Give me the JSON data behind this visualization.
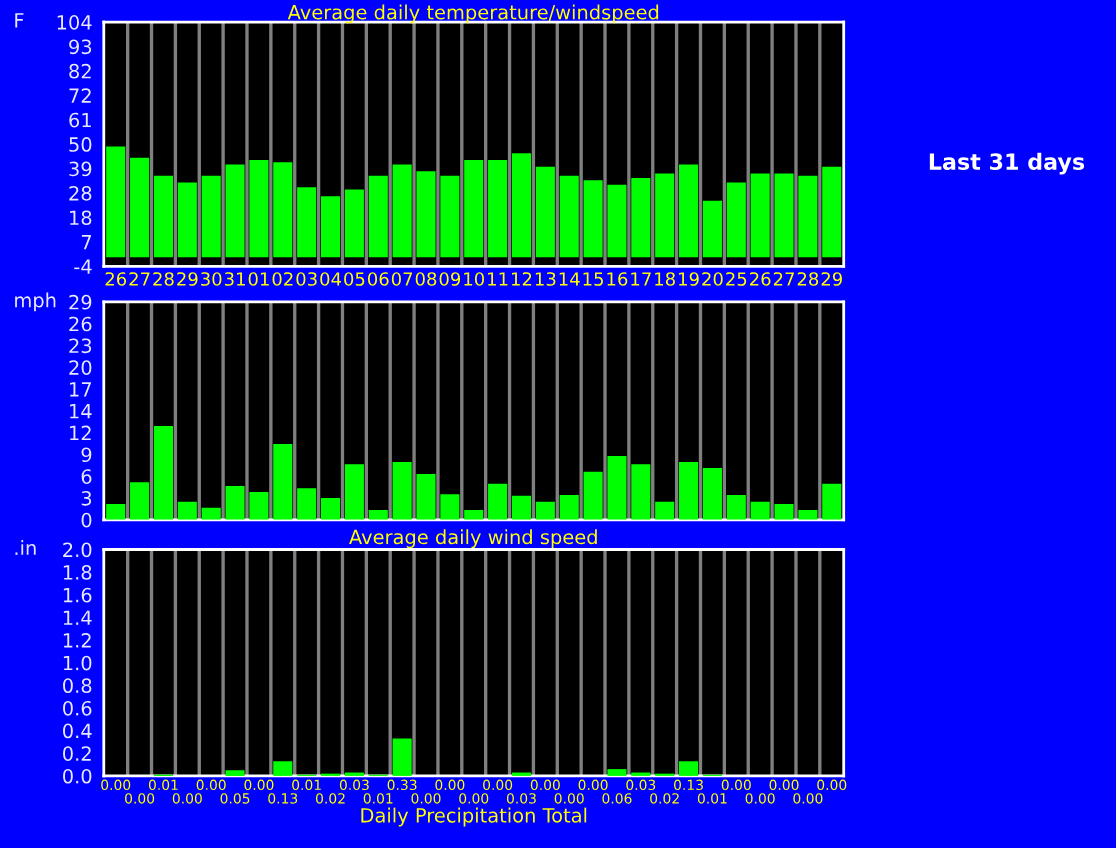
{
  "chart_data": [
    {
      "type": "bar",
      "title": "Average daily temperature/windspeed",
      "ylabel": "F",
      "annotations": [
        "Last 31 days"
      ],
      "categories": [
        "26",
        "27",
        "28",
        "29",
        "30",
        "31",
        "01",
        "02",
        "03",
        "04",
        "05",
        "06",
        "07",
        "08",
        "09",
        "10",
        "11",
        "12",
        "13",
        "14",
        "15",
        "16",
        "17",
        "18",
        "19",
        "20",
        "25",
        "26",
        "27",
        "28",
        "29"
      ],
      "values": [
        49,
        44,
        36,
        33,
        36,
        41,
        43,
        42,
        31,
        27,
        30,
        36,
        41,
        38,
        36,
        43,
        43,
        46,
        40,
        36,
        34,
        32,
        35,
        37,
        41,
        25,
        33,
        37,
        37,
        36,
        40
      ],
      "color": "#00ff00",
      "ylim": [
        -4,
        104
      ],
      "yticks": [
        -4,
        {
          "value": 6.8,
          "label": "7"
        },
        {
          "value": 17.6,
          "label": "18"
        },
        {
          "value": 28.4,
          "label": "28"
        },
        {
          "value": 39.2,
          "label": "39"
        },
        50,
        {
          "value": 60.8,
          "label": "61"
        },
        {
          "value": 71.6,
          "label": "72"
        },
        {
          "value": 82.4,
          "label": "82"
        },
        {
          "value": 93.2,
          "label": "93"
        },
        104
      ],
      "grid": "x"
    },
    {
      "type": "bar",
      "xlabel": "Average daily wind speed",
      "ylabel": "mph",
      "tick_labels": "y",
      "categories": [
        "26",
        "27",
        "28",
        "29",
        "30",
        "31",
        "01",
        "02",
        "03",
        "04",
        "05",
        "06",
        "07",
        "08",
        "09",
        "10",
        "11",
        "12",
        "13",
        "14",
        "15",
        "16",
        "17",
        "18",
        "19",
        "20",
        "25",
        "26",
        "27",
        "28",
        "29"
      ],
      "values": [
        2.1,
        5.0,
        12.5,
        2.4,
        1.6,
        4.5,
        3.7,
        10.1,
        4.2,
        2.9,
        7.4,
        1.3,
        7.7,
        6.1,
        3.4,
        1.3,
        4.8,
        3.2,
        2.4,
        3.3,
        6.4,
        8.5,
        7.4,
        2.4,
        7.7,
        6.9,
        3.3,
        2.4,
        2.1,
        1.3,
        4.8
      ],
      "color": "#00ff00",
      "ylim": [
        0,
        29
      ],
      "yticks": [
        0,
        {
          "value": 2.9,
          "label": "3"
        },
        {
          "value": 5.8,
          "label": "6"
        },
        {
          "value": 8.7,
          "label": "9"
        },
        {
          "value": 11.6,
          "label": "12"
        },
        {
          "value": 14.5,
          "label": "14"
        },
        {
          "value": 17.4,
          "label": "17"
        },
        {
          "value": 20.3,
          "label": "20"
        },
        {
          "value": 23.2,
          "label": "23"
        },
        {
          "value": 26.1,
          "label": "26"
        },
        29
      ],
      "grid": "x"
    },
    {
      "type": "bar",
      "xlabel": "Daily Precipitation Total",
      "ylabel": ".in",
      "tick_labels": "y",
      "categories": [
        "26",
        "27",
        "28",
        "29",
        "30",
        "31",
        "01",
        "02",
        "03",
        "04",
        "05",
        "06",
        "07",
        "08",
        "09",
        "10",
        "11",
        "12",
        "13",
        "14",
        "15",
        "16",
        "17",
        "18",
        "19",
        "20",
        "25",
        "26",
        "27",
        "28",
        "29"
      ],
      "values": [
        0,
        0,
        0.01,
        0,
        0,
        0.05,
        0,
        0.13,
        0.01,
        0.02,
        0.03,
        0.01,
        0.33,
        0,
        0,
        0,
        0,
        0.03,
        0,
        0,
        0,
        0.06,
        0.03,
        0.02,
        0.13,
        0.01,
        0,
        0,
        0,
        0,
        0
      ],
      "value_labels": [
        "0.00",
        "0.00",
        "0.01",
        "0.00",
        "0.00",
        "0.05",
        "0.00",
        "0.13",
        "0.01",
        "0.02",
        "0.03",
        "0.01",
        "0.33",
        "0.00",
        "0.00",
        "0.00",
        "0.00",
        "0.03",
        "0.00",
        "0.00",
        "0.00",
        "0.06",
        "0.03",
        "0.02",
        "0.13",
        "0.01",
        "0.00",
        "0.00",
        "0.00",
        "0.00",
        "0.00"
      ],
      "color": "#00ff00",
      "ylim": [
        0,
        2.0
      ],
      "yticks": [
        {
          "value": 0,
          "label": "0.0"
        },
        {
          "value": 0.2,
          "label": "0.2"
        },
        {
          "value": 0.4,
          "label": "0.4"
        },
        {
          "value": 0.6,
          "label": "0.6"
        },
        {
          "value": 0.8,
          "label": "0.8"
        },
        {
          "value": 1.0,
          "label": "1.0"
        },
        {
          "value": 1.2,
          "label": "1.2"
        },
        {
          "value": 1.4,
          "label": "1.4"
        },
        {
          "value": 1.6,
          "label": "1.6"
        },
        {
          "value": 1.8,
          "label": "1.8"
        },
        {
          "value": 2.0,
          "label": "2.0"
        }
      ],
      "grid": "x"
    }
  ]
}
